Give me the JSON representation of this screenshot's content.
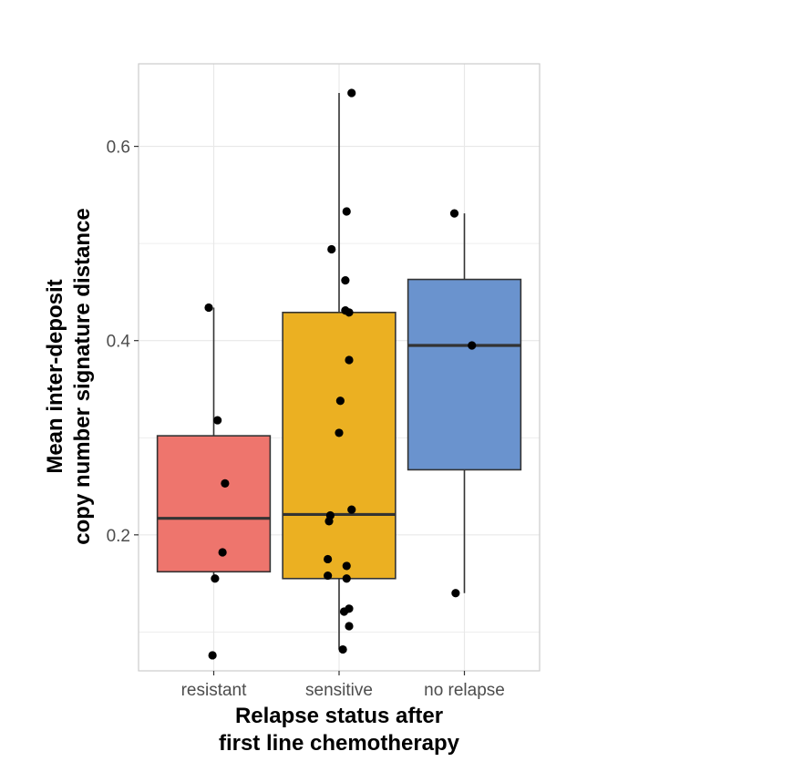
{
  "chart_data": {
    "type": "box",
    "xlabel": [
      "Relapse status after",
      "first line chemotherapy"
    ],
    "ylabel": [
      "Mean inter-deposit",
      "copy number signature distance"
    ],
    "ylim": [
      0.06,
      0.685
    ],
    "yticks": [
      0.2,
      0.4,
      0.6
    ],
    "ytick_labels": [
      "0.2",
      "0.4",
      "0.6"
    ],
    "y_minor_ticks": [
      0.1,
      0.3,
      0.5
    ],
    "grid": true,
    "categories": [
      "resistant",
      "sensitive",
      "no relapse"
    ],
    "colors": {
      "resistant": "#EE756D",
      "sensitive": "#EBB022",
      "no relapse": "#6A93CE",
      "border": "#333333",
      "points": "#000000",
      "grid": "#e8e8e8",
      "panel_border": "#cccccc"
    },
    "boxes": [
      {
        "name": "resistant",
        "whisker_low": 0.155,
        "q1": 0.162,
        "median": 0.217,
        "q3": 0.302,
        "whisker_high": 0.434,
        "points": [
          {
            "x": 0.96,
            "y": 0.434
          },
          {
            "x": 1.03,
            "y": 0.318
          },
          {
            "x": 1.09,
            "y": 0.253
          },
          {
            "x": 1.07,
            "y": 0.182
          },
          {
            "x": 1.01,
            "y": 0.155
          },
          {
            "x": 0.99,
            "y": 0.076
          }
        ]
      },
      {
        "name": "sensitive",
        "whisker_low": 0.082,
        "q1": 0.155,
        "median": 0.221,
        "q3": 0.429,
        "whisker_high": 0.655,
        "points": [
          {
            "x": 2.1,
            "y": 0.655
          },
          {
            "x": 2.06,
            "y": 0.533
          },
          {
            "x": 1.94,
            "y": 0.494
          },
          {
            "x": 2.05,
            "y": 0.462
          },
          {
            "x": 2.05,
            "y": 0.431
          },
          {
            "x": 2.08,
            "y": 0.429
          },
          {
            "x": 2.08,
            "y": 0.38
          },
          {
            "x": 2.01,
            "y": 0.338
          },
          {
            "x": 2.0,
            "y": 0.305
          },
          {
            "x": 2.1,
            "y": 0.226
          },
          {
            "x": 1.93,
            "y": 0.22
          },
          {
            "x": 1.92,
            "y": 0.214
          },
          {
            "x": 1.91,
            "y": 0.175
          },
          {
            "x": 2.06,
            "y": 0.168
          },
          {
            "x": 1.91,
            "y": 0.158
          },
          {
            "x": 2.06,
            "y": 0.155
          },
          {
            "x": 2.08,
            "y": 0.124
          },
          {
            "x": 2.04,
            "y": 0.121
          },
          {
            "x": 2.08,
            "y": 0.106
          },
          {
            "x": 2.03,
            "y": 0.082
          }
        ]
      },
      {
        "name": "no relapse",
        "whisker_low": 0.14,
        "q1": 0.267,
        "median": 0.395,
        "q3": 0.463,
        "whisker_high": 0.531,
        "points": [
          {
            "x": 2.92,
            "y": 0.531
          },
          {
            "x": 3.06,
            "y": 0.395
          },
          {
            "x": 2.93,
            "y": 0.14
          }
        ]
      }
    ]
  }
}
